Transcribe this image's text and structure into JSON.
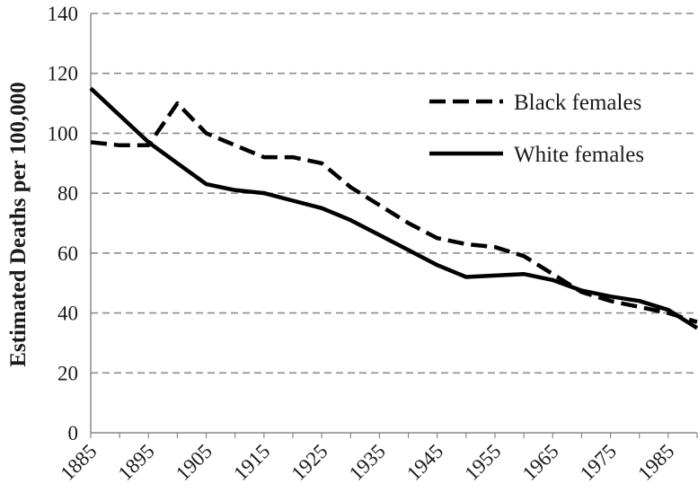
{
  "chart_data": {
    "type": "line",
    "title": "",
    "xlabel": "",
    "ylabel": "Estimated Deaths per 100,000",
    "ylim": [
      0,
      140
    ],
    "xlim": [
      1885,
      1990
    ],
    "yticks": [
      0,
      20,
      40,
      60,
      80,
      100,
      120,
      140
    ],
    "xticks": [
      1885,
      1895,
      1905,
      1915,
      1925,
      1935,
      1945,
      1955,
      1965,
      1975,
      1985
    ],
    "grid": "horizontal-dashed",
    "legend_position": "top-right",
    "x": [
      1885,
      1890,
      1895,
      1900,
      1905,
      1910,
      1915,
      1920,
      1925,
      1930,
      1935,
      1940,
      1945,
      1950,
      1955,
      1960,
      1965,
      1970,
      1975,
      1980,
      1985,
      1990
    ],
    "series": [
      {
        "name": "Black females",
        "style": "dashed",
        "color": "#000000",
        "values": [
          97,
          96,
          96,
          110,
          100,
          96,
          92,
          92,
          90,
          82,
          76,
          70,
          65,
          63,
          62,
          59,
          53,
          47,
          44,
          42,
          40,
          37
        ]
      },
      {
        "name": "White females",
        "style": "solid",
        "color": "#000000",
        "values": [
          115,
          106,
          97,
          90,
          83,
          81,
          80,
          77.5,
          75,
          71,
          66,
          61,
          56,
          52,
          52.5,
          53,
          51,
          47.5,
          45.5,
          44,
          41,
          35
        ]
      }
    ]
  }
}
